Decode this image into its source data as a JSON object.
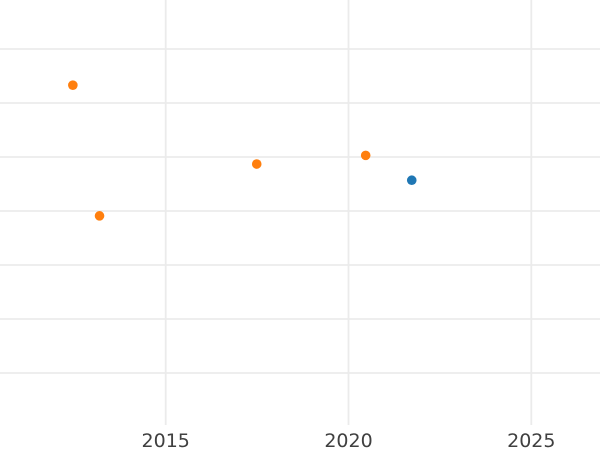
{
  "chart": {
    "background_color": "#ffffff",
    "grid_color": "#ebebeb",
    "tick_label_color": "#404040",
    "x_tick_labels": [
      "2015",
      "2020",
      "2025"
    ]
  },
  "chart_data": {
    "type": "scatter",
    "title": "",
    "xlabel": "",
    "ylabel": "",
    "grid": true,
    "legend": false,
    "x_axis": {
      "ticks": [
        2015,
        2020,
        2025
      ],
      "visible_range": [
        2010.5,
        2026.9
      ]
    },
    "y_axis": {
      "note": "no y-axis tick labels visible in the cropped screenshot; y values given in gridline units (1 unit = one gridline step, 0 = lowest drawn gridline)",
      "gridline_units_drawn": [
        0,
        1,
        2,
        3,
        4,
        5,
        6
      ],
      "visible_range_gridline_units": [
        -0.96,
        6.91
      ]
    },
    "series": [
      {
        "name": "orange-series",
        "color": "#ff7f0e",
        "marker": "circle",
        "points": [
          {
            "x": 2012.46,
            "y": 5.33
          },
          {
            "x": 2013.19,
            "y": 2.91
          },
          {
            "x": 2017.49,
            "y": 3.87
          },
          {
            "x": 2020.47,
            "y": 4.03
          }
        ]
      },
      {
        "name": "blue-series",
        "color": "#1f77b4",
        "marker": "circle",
        "points": [
          {
            "x": 2021.73,
            "y": 3.57
          }
        ]
      }
    ]
  }
}
